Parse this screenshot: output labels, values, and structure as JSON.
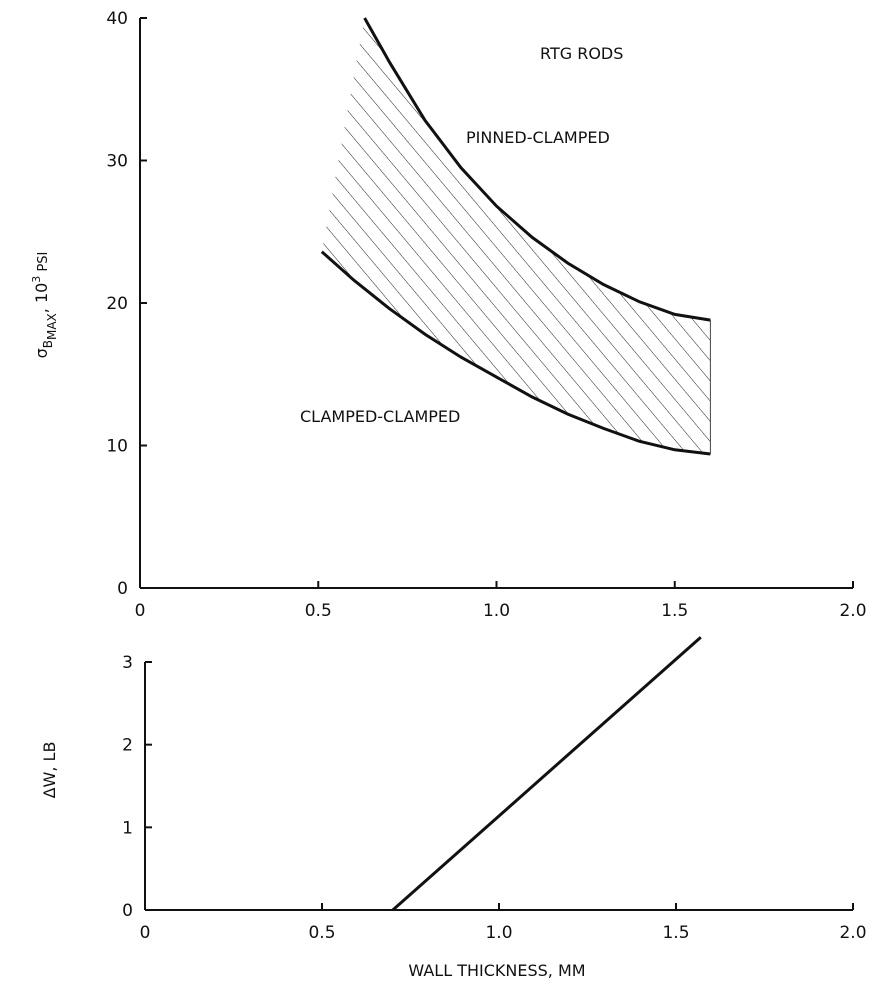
{
  "chart_data": [
    {
      "type": "area",
      "title": "",
      "xlabel": "",
      "ylabel": "σBMAX, 10³ PSI",
      "ylabel_parts": {
        "sigma": "σ",
        "sub1": "B",
        "sub2": "MAX",
        "unit": ", 10",
        "exp": "3",
        "unit2": " PSI"
      },
      "xlim": [
        0,
        2.0
      ],
      "ylim": [
        0,
        40
      ],
      "xticks": [
        0,
        0.5,
        1.0,
        1.5,
        2.0
      ],
      "xtick_labels": [
        "0",
        "0.5",
        "1.0",
        "1.5",
        "2.0"
      ],
      "yticks": [
        0,
        10,
        20,
        30,
        40
      ],
      "ytick_labels": [
        "0",
        "10",
        "20",
        "30",
        "40"
      ],
      "grid": false,
      "series": [
        {
          "name": "PINNED-CLAMPED",
          "x": [
            0.63,
            0.7,
            0.8,
            0.9,
            1.0,
            1.1,
            1.2,
            1.3,
            1.4,
            1.5,
            1.6
          ],
          "y": [
            40.0,
            36.9,
            32.8,
            29.5,
            26.8,
            24.6,
            22.8,
            21.3,
            20.1,
            19.2,
            18.8
          ]
        },
        {
          "name": "CLAMPED-CLAMPED",
          "x": [
            0.51,
            0.6,
            0.7,
            0.8,
            0.9,
            1.0,
            1.1,
            1.2,
            1.3,
            1.4,
            1.5,
            1.6
          ],
          "y": [
            23.6,
            21.6,
            19.6,
            17.8,
            16.2,
            14.8,
            13.4,
            12.2,
            11.2,
            10.3,
            9.7,
            9.4
          ]
        }
      ],
      "shaded_band": "between series",
      "annotations": [
        "RTG RODS",
        "PINNED-CLAMPED",
        "CLAMPED-CLAMPED"
      ]
    },
    {
      "type": "line",
      "title": "",
      "xlabel": "WALL THICKNESS, MM",
      "ylabel": "ΔW, LB",
      "xlim": [
        0,
        2.0
      ],
      "ylim": [
        0,
        3
      ],
      "xticks": [
        0,
        0.5,
        1.0,
        1.5,
        2.0
      ],
      "xtick_labels": [
        "0",
        "0.5",
        "1.0",
        "1.5",
        "2.0"
      ],
      "yticks": [
        0,
        1,
        2,
        3
      ],
      "ytick_labels": [
        "0",
        "1",
        "2",
        "3"
      ],
      "grid": false,
      "series": [
        {
          "x": [
            0.7,
            1.57
          ],
          "y": [
            0,
            3.3
          ]
        }
      ]
    }
  ],
  "colors": {
    "ink": "#111111",
    "background": "#ffffff"
  }
}
